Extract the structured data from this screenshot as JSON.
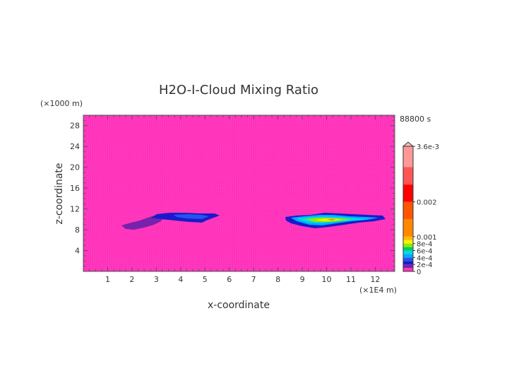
{
  "chart_data": {
    "type": "heatmap",
    "title": "H2O-I-Cloud Mixing Ratio",
    "time_label": "88800 s",
    "xlabel": "x-coordinate",
    "ylabel": "z-coordinate",
    "x_unit": "(×1E4 m)",
    "y_unit": "(×1000 m)",
    "xlim": [
      0,
      12.8
    ],
    "ylim": [
      0,
      30
    ],
    "x_ticks": [
      1,
      2,
      3,
      4,
      5,
      6,
      7,
      8,
      9,
      10,
      11,
      12
    ],
    "y_ticks": [
      4,
      8,
      12,
      16,
      20,
      24,
      28
    ],
    "background_color": "#ff33bb",
    "colorbar": {
      "labels": [
        "3.6e-3",
        "0.002",
        "0.001",
        "8e-4",
        "6e-4",
        "4e-4",
        "2e-4",
        "0"
      ],
      "levels": [
        {
          "value": 0,
          "color": "#ff33bb"
        },
        {
          "value": 0.0001,
          "color": "#7722aa"
        },
        {
          "value": 0.0002,
          "color": "#1a1acc"
        },
        {
          "value": 0.0003,
          "color": "#2255ee"
        },
        {
          "value": 0.0004,
          "color": "#00aaff"
        },
        {
          "value": 0.0005,
          "color": "#00dddd"
        },
        {
          "value": 0.0006,
          "color": "#00cc66"
        },
        {
          "value": 0.0007,
          "color": "#88ee00"
        },
        {
          "value": 0.0008,
          "color": "#ffee00"
        },
        {
          "value": 0.0009,
          "color": "#ffbb00"
        },
        {
          "value": 0.001,
          "color": "#ff8800"
        },
        {
          "value": 0.0015,
          "color": "#ff5500"
        },
        {
          "value": 0.002,
          "color": "#ff0000"
        },
        {
          "value": 0.0025,
          "color": "#ff5555"
        },
        {
          "value": 0.003,
          "color": "#ff9999"
        },
        {
          "value": 0.0036,
          "color": "#ffbbbb"
        }
      ]
    },
    "features": [
      {
        "label": "cloud-left-low",
        "x": [
          1.5,
          3.2
        ],
        "z": [
          7.8,
          10.5
        ],
        "max_value": 0.0001
      },
      {
        "label": "cloud-left-high",
        "x": [
          3.1,
          5.5
        ],
        "z": [
          9.5,
          11.3
        ],
        "max_value": 0.0003
      },
      {
        "label": "cloud-right",
        "x": [
          8.3,
          12.4
        ],
        "z": [
          8.8,
          10.9
        ],
        "max_value": 0.001
      }
    ]
  }
}
